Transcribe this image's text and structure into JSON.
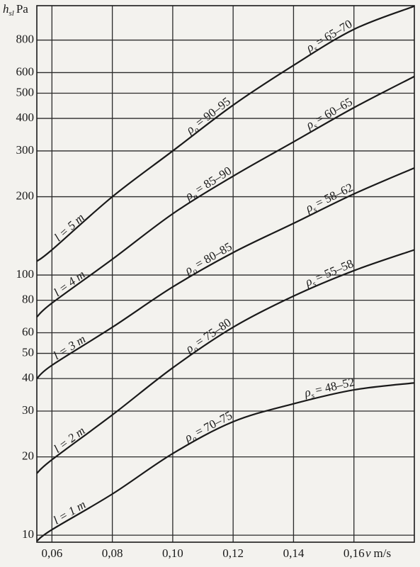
{
  "chart_data": {
    "type": "line",
    "y_label": {
      "symbol": "h",
      "subscript": "sl",
      "unit": "Pa"
    },
    "x_label": {
      "symbol": "v",
      "unit": "m/s"
    },
    "x": [
      0.055,
      0.06,
      0.08,
      0.1,
      0.12,
      0.14,
      0.16,
      0.18
    ],
    "xlim": [
      0.055,
      0.18
    ],
    "ylim": [
      9.4,
      1085
    ],
    "y_scale": "log",
    "grid": true,
    "xticks": [
      {
        "value": 0.06,
        "label": "0,06"
      },
      {
        "value": 0.08,
        "label": "0,08"
      },
      {
        "value": 0.1,
        "label": "0,10"
      },
      {
        "value": 0.12,
        "label": "0,12"
      },
      {
        "value": 0.14,
        "label": "0,14"
      },
      {
        "value": 0.16,
        "label": "0,16"
      }
    ],
    "yticks": [
      10,
      20,
      30,
      40,
      50,
      60,
      80,
      100,
      200,
      300,
      400,
      500,
      600,
      800
    ],
    "series": [
      {
        "name": "l = 1 m",
        "color": "#1a1a1a",
        "values": [
          9.5,
          10.5,
          14.4,
          20.6,
          27.3,
          32,
          36.2,
          38.5
        ],
        "label_o": {
          "symbol": "ρ",
          "subscript": "o",
          "text": "= 70–75"
        },
        "label_s": {
          "symbol": "ρ",
          "subscript": "s",
          "text": "= 48–52"
        }
      },
      {
        "name": "l = 2 m",
        "color": "#1a1a1a",
        "values": [
          17.3,
          19.5,
          29,
          44,
          63,
          83,
          104,
          125
        ],
        "label_o": {
          "symbol": "ρ",
          "subscript": "o",
          "text": "= 75–80"
        },
        "label_s": {
          "symbol": "ρ",
          "subscript": "s",
          "text": "= 55–58"
        }
      },
      {
        "name": "l = 3 m",
        "color": "#1a1a1a",
        "values": [
          40,
          45,
          63,
          90,
          122,
          158,
          205,
          258
        ],
        "label_o": {
          "symbol": "ρ",
          "subscript": "o",
          "text": "= 80–85"
        },
        "label_s": {
          "symbol": "ρ",
          "subscript": "s",
          "text": "= 58–62"
        }
      },
      {
        "name": "l = 4 m",
        "color": "#1a1a1a",
        "values": [
          69,
          78,
          115,
          172,
          240,
          325,
          440,
          580
        ],
        "label_o": {
          "symbol": "ρ",
          "subscript": "o",
          "text": "= 85–90"
        },
        "label_s": {
          "symbol": "ρ",
          "subscript": "s",
          "text": "= 60–65"
        }
      },
      {
        "name": "l = 5 m",
        "color": "#1a1a1a",
        "values": [
          113,
          125,
          200,
          300,
          450,
          640,
          880,
          1080
        ],
        "label_o": {
          "symbol": "ρ",
          "subscript": "o",
          "text": "= 90–95"
        },
        "label_s": {
          "symbol": "ρ",
          "subscript": "s",
          "text": "= 65–70"
        }
      }
    ]
  }
}
